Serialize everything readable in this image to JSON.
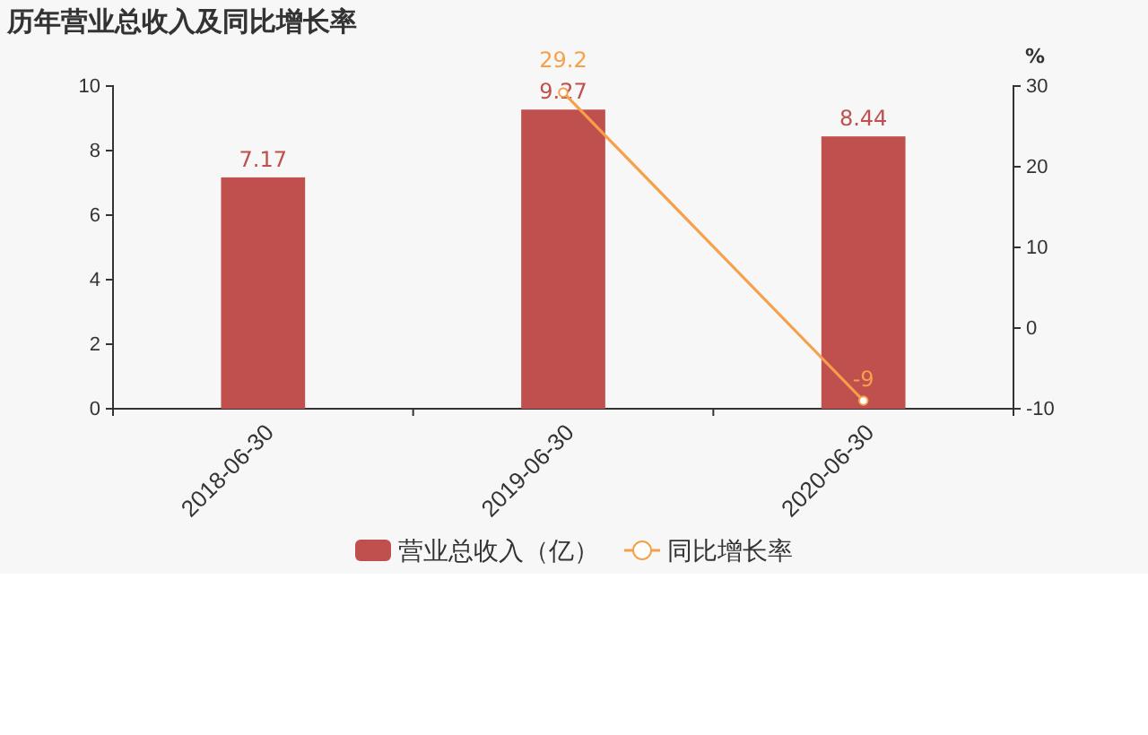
{
  "chart_data": {
    "type": "bar",
    "title": "历年营业总收入及同比增长率",
    "y2label": "%",
    "categories": [
      "2018-06-30",
      "2019-06-30",
      "2020-06-30"
    ],
    "series": [
      {
        "name": "营业总收入（亿）",
        "color": "#c0504d",
        "values": [
          7.17,
          9.27,
          8.44
        ]
      },
      {
        "name": "同比增长率",
        "type": "line",
        "axis": "y2",
        "color": "#f7a04b",
        "values": [
          null,
          29.2,
          -9
        ]
      }
    ],
    "ylim": [
      0,
      10
    ],
    "yticks": [
      0,
      2,
      4,
      6,
      8,
      10
    ],
    "y2lim": [
      -10,
      30
    ],
    "y2ticks": [
      -10,
      0,
      10,
      20,
      30
    ],
    "data_labels": true,
    "grid": false,
    "legend": "bottom",
    "marker": "circle",
    "line_style": "solid"
  }
}
